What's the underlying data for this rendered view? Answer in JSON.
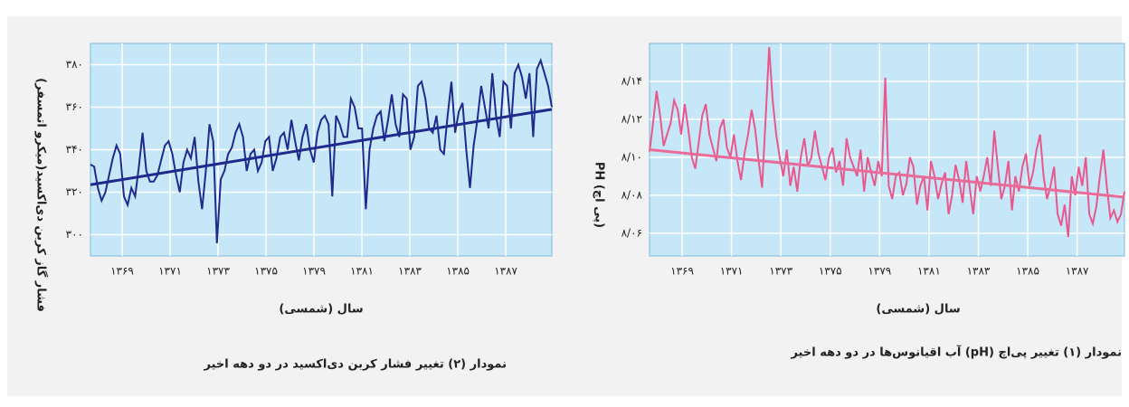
{
  "charts": [
    {
      "type": "line",
      "ylabel": "فشار گاز کربن دی‌اکسید(میکرو اتمسفر)",
      "xlabel": "سال (شمسی)",
      "caption": "نمودار (۲) تغییر فشار کربن دی‌اکسید در دو دهه اخیر",
      "xtick_labels": [
        "۱۳۶۹",
        "۱۳۷۱",
        "۱۳۷۳",
        "۱۳۷۵",
        "۱۳۷۹",
        "۱۳۸۱",
        "۱۳۸۳",
        "۱۳۸۵",
        "۱۳۸۷"
      ],
      "ylim": [
        290,
        390
      ],
      "yticks": [
        {
          "value": 300,
          "label": "۳۰۰"
        },
        {
          "value": 320,
          "label": "۳۲۰"
        },
        {
          "value": 340,
          "label": "۳۴۰"
        },
        {
          "value": 360,
          "label": "۳۶۰"
        },
        {
          "value": 380,
          "label": "۳۸۰"
        }
      ],
      "color": "#1f2a8c",
      "trend": [
        323.5,
        359
      ],
      "trend_color": "#1f2a8c",
      "grid": true,
      "values": [
        333,
        332,
        322,
        316,
        320,
        328,
        336,
        342,
        338,
        318,
        314,
        322,
        318,
        332,
        348,
        330,
        325,
        325,
        328,
        335,
        342,
        344,
        338,
        328,
        320,
        334,
        340,
        336,
        346,
        325,
        312,
        330,
        352,
        344,
        296,
        326,
        330,
        338,
        341,
        348,
        352,
        346,
        330,
        338,
        340,
        330,
        334,
        344,
        346,
        330,
        336,
        346,
        348,
        340,
        354,
        344,
        335,
        346,
        352,
        340,
        334,
        348,
        354,
        356,
        352,
        318,
        356,
        352,
        346,
        346,
        364,
        360,
        350,
        350,
        312,
        340,
        350,
        356,
        358,
        344,
        354,
        366,
        352,
        346,
        366,
        364,
        340,
        346,
        370,
        372,
        364,
        350,
        348,
        356,
        340,
        338,
        356,
        372,
        348,
        358,
        362,
        340,
        322,
        342,
        354,
        370,
        360,
        350,
        376,
        356,
        346,
        372,
        370,
        350,
        376,
        380,
        374,
        364,
        376,
        346,
        378,
        382,
        376,
        370,
        360
      ]
    },
    {
      "type": "line",
      "ylabel": "PH (پی اچ)",
      "xlabel": "سال (شمسی)",
      "caption": "نمودار (۱) تغییر پی‌اچ (pH) آب اقیانوس‌ها در دو دهه اخیر",
      "xtick_labels": [
        "۱۳۶۹",
        "۱۳۷۱",
        "۱۳۷۳",
        "۱۳۷۵",
        "۱۳۷۹",
        "۱۳۸۱",
        "۱۳۸۳",
        "۱۳۸۵",
        "۱۳۸۷"
      ],
      "ylim": [
        8.048,
        8.16
      ],
      "yticks": [
        {
          "value": 8.06,
          "label": "۸/۰۶"
        },
        {
          "value": 8.08,
          "label": "۸/۰۸"
        },
        {
          "value": 8.1,
          "label": "۸/۱۰"
        },
        {
          "value": 8.12,
          "label": "۸/۱۲"
        },
        {
          "value": 8.14,
          "label": "۸/۱۴"
        }
      ],
      "color": "#e8588c",
      "trend": [
        8.104,
        8.079
      ],
      "trend_color": "#ea6a98",
      "grid": true,
      "values": [
        8.103,
        8.118,
        8.135,
        8.122,
        8.106,
        8.112,
        8.118,
        8.13,
        8.125,
        8.112,
        8.128,
        8.115,
        8.1,
        8.094,
        8.108,
        8.122,
        8.128,
        8.112,
        8.105,
        8.098,
        8.115,
        8.12,
        8.105,
        8.1,
        8.112,
        8.098,
        8.088,
        8.102,
        8.112,
        8.125,
        8.115,
        8.098,
        8.084,
        8.12,
        8.158,
        8.13,
        8.112,
        8.1,
        8.09,
        8.104,
        8.085,
        8.095,
        8.082,
        8.1,
        8.11,
        8.095,
        8.1,
        8.114,
        8.102,
        8.095,
        8.088,
        8.1,
        8.105,
        8.092,
        8.098,
        8.085,
        8.11,
        8.1,
        8.095,
        8.09,
        8.104,
        8.082,
        8.1,
        8.092,
        8.085,
        8.098,
        8.09,
        8.142,
        8.085,
        8.078,
        8.09,
        8.092,
        8.08,
        8.086,
        8.1,
        8.095,
        8.075,
        8.085,
        8.09,
        8.072,
        8.098,
        8.09,
        8.078,
        8.086,
        8.092,
        8.07,
        8.08,
        8.096,
        8.088,
        8.076,
        8.098,
        8.084,
        8.07,
        8.09,
        8.082,
        8.09,
        8.1,
        8.085,
        8.114,
        8.095,
        8.078,
        8.085,
        8.098,
        8.072,
        8.09,
        8.082,
        8.095,
        8.102,
        8.085,
        8.092,
        8.104,
        8.112,
        8.09,
        8.078,
        8.085,
        8.095,
        8.07,
        8.064,
        8.075,
        8.058,
        8.09,
        8.08,
        8.095,
        8.085,
        8.1,
        8.07,
        8.065,
        8.074,
        8.09,
        8.104,
        8.084,
        8.068,
        8.072,
        8.066,
        8.07,
        8.082
      ]
    }
  ]
}
